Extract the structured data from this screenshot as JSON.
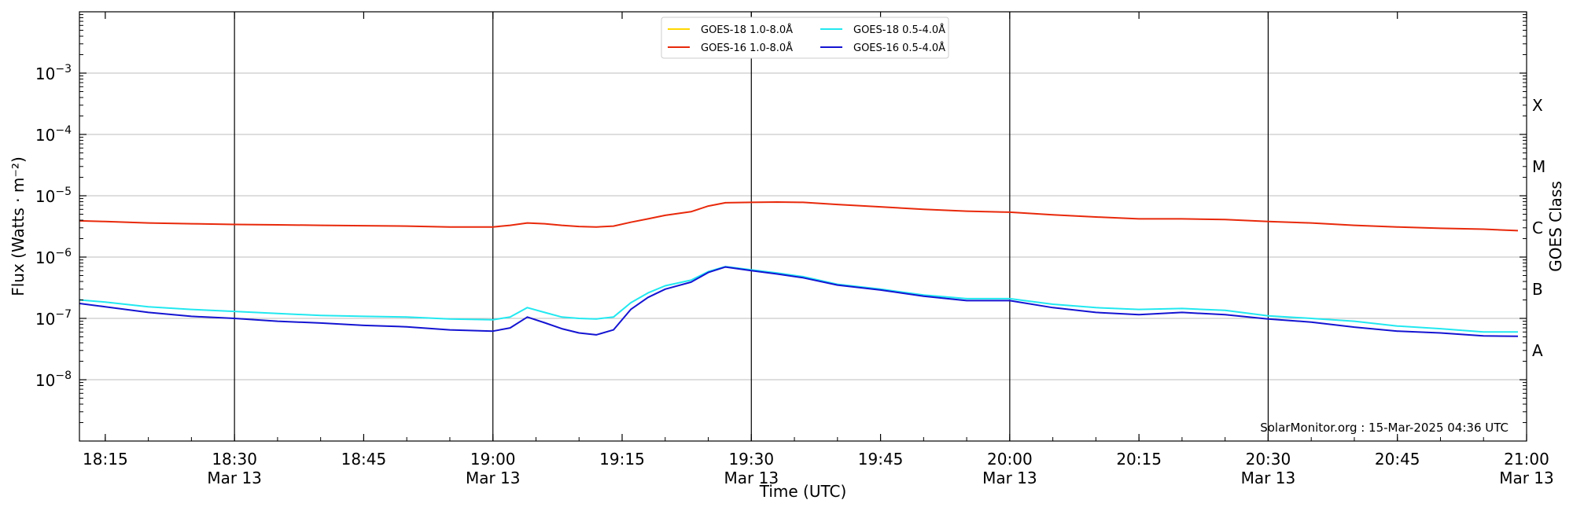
{
  "chart_data": {
    "type": "line",
    "xlabel": "Time (UTC)",
    "ylabel": "Flux (Watts · m⁻²)",
    "ylabel_right": "GOES Class",
    "y_scale": "log",
    "xlim": [
      "2025-03-13 18:12",
      "2025-03-13 21:00"
    ],
    "ylim": [
      1e-09,
      0.01
    ],
    "grid": "horizontal",
    "legend_placement": "top-center",
    "credit": "SolarMonitor.org : 15-Mar-2025 04:36 UTC",
    "x_ticks": [
      {
        "time": "18:15",
        "label": "18:15",
        "date": ""
      },
      {
        "time": "18:30",
        "label": "18:30",
        "date": "Mar 13"
      },
      {
        "time": "18:45",
        "label": "18:45",
        "date": ""
      },
      {
        "time": "19:00",
        "label": "19:00",
        "date": "Mar 13"
      },
      {
        "time": "19:15",
        "label": "19:15",
        "date": ""
      },
      {
        "time": "19:30",
        "label": "19:30",
        "date": "Mar 13"
      },
      {
        "time": "19:45",
        "label": "19:45",
        "date": ""
      },
      {
        "time": "20:00",
        "label": "20:00",
        "date": "Mar 13"
      },
      {
        "time": "20:15",
        "label": "20:15",
        "date": ""
      },
      {
        "time": "20:30",
        "label": "20:30",
        "date": "Mar 13"
      },
      {
        "time": "20:45",
        "label": "20:45",
        "date": ""
      },
      {
        "time": "21:00",
        "label": "21:00",
        "date": "Mar 13"
      }
    ],
    "y_ticks": [
      {
        "value": 1e-08,
        "base": "10",
        "exp": "−8"
      },
      {
        "value": 1e-07,
        "base": "10",
        "exp": "−7"
      },
      {
        "value": 1e-06,
        "base": "10",
        "exp": "−6"
      },
      {
        "value": 1e-05,
        "base": "10",
        "exp": "−5"
      },
      {
        "value": 0.0001,
        "base": "10",
        "exp": "−4"
      },
      {
        "value": 0.001,
        "base": "10",
        "exp": "−3"
      }
    ],
    "classes": [
      {
        "label": "A",
        "value": 3e-08
      },
      {
        "label": "B",
        "value": 3e-07
      },
      {
        "label": "C",
        "value": 3e-06
      },
      {
        "label": "M",
        "value": 3e-05
      },
      {
        "label": "X",
        "value": 0.0003
      }
    ],
    "vertical_lines": [
      "18:30",
      "19:00",
      "19:30",
      "20:00",
      "20:30"
    ],
    "series": [
      {
        "name": "GOES-18 1.0-8.0Å",
        "color": "#ffd700",
        "data": []
      },
      {
        "name": "GOES-16 1.0-8.0Å",
        "color": "#e8290b",
        "data": [
          [
            "18:12",
            3.9e-06
          ],
          [
            "18:15",
            3.8e-06
          ],
          [
            "18:20",
            3.6e-06
          ],
          [
            "18:25",
            3.5e-06
          ],
          [
            "18:30",
            3.4e-06
          ],
          [
            "18:35",
            3.35e-06
          ],
          [
            "18:40",
            3.3e-06
          ],
          [
            "18:45",
            3.25e-06
          ],
          [
            "18:50",
            3.2e-06
          ],
          [
            "18:55",
            3.1e-06
          ],
          [
            "19:00",
            3.1e-06
          ],
          [
            "19:02",
            3.3e-06
          ],
          [
            "19:04",
            3.6e-06
          ],
          [
            "19:06",
            3.5e-06
          ],
          [
            "19:08",
            3.3e-06
          ],
          [
            "19:10",
            3.15e-06
          ],
          [
            "19:12",
            3.1e-06
          ],
          [
            "19:14",
            3.2e-06
          ],
          [
            "19:16",
            3.7e-06
          ],
          [
            "19:18",
            4.2e-06
          ],
          [
            "19:20",
            4.8e-06
          ],
          [
            "19:23",
            5.5e-06
          ],
          [
            "19:25",
            6.8e-06
          ],
          [
            "19:27",
            7.7e-06
          ],
          [
            "19:30",
            7.8e-06
          ],
          [
            "19:33",
            7.9e-06
          ],
          [
            "19:36",
            7.8e-06
          ],
          [
            "19:40",
            7.2e-06
          ],
          [
            "19:45",
            6.6e-06
          ],
          [
            "19:50",
            6e-06
          ],
          [
            "19:55",
            5.6e-06
          ],
          [
            "20:00",
            5.4e-06
          ],
          [
            "20:05",
            4.9e-06
          ],
          [
            "20:10",
            4.5e-06
          ],
          [
            "20:15",
            4.2e-06
          ],
          [
            "20:20",
            4.2e-06
          ],
          [
            "20:25",
            4.1e-06
          ],
          [
            "20:30",
            3.8e-06
          ],
          [
            "20:35",
            3.6e-06
          ],
          [
            "20:40",
            3.3e-06
          ],
          [
            "20:45",
            3.1e-06
          ],
          [
            "20:50",
            2.95e-06
          ],
          [
            "20:55",
            2.85e-06
          ],
          [
            "20:59",
            2.7e-06
          ]
        ]
      },
      {
        "name": "GOES-18 0.5-4.0Å",
        "color": "#22e8f0",
        "data": [
          [
            "18:12",
            2e-07
          ],
          [
            "18:15",
            1.85e-07
          ],
          [
            "18:20",
            1.55e-07
          ],
          [
            "18:25",
            1.4e-07
          ],
          [
            "18:30",
            1.3e-07
          ],
          [
            "18:35",
            1.2e-07
          ],
          [
            "18:40",
            1.12e-07
          ],
          [
            "18:45",
            1.08e-07
          ],
          [
            "18:50",
            1.05e-07
          ],
          [
            "18:55",
            9.8e-08
          ],
          [
            "19:00",
            9.5e-08
          ],
          [
            "19:02",
            1.05e-07
          ],
          [
            "19:04",
            1.5e-07
          ],
          [
            "19:06",
            1.25e-07
          ],
          [
            "19:08",
            1.05e-07
          ],
          [
            "19:10",
            1e-07
          ],
          [
            "19:12",
            9.8e-08
          ],
          [
            "19:14",
            1.05e-07
          ],
          [
            "19:16",
            1.8e-07
          ],
          [
            "19:18",
            2.6e-07
          ],
          [
            "19:20",
            3.4e-07
          ],
          [
            "19:23",
            4.2e-07
          ],
          [
            "19:25",
            5.8e-07
          ],
          [
            "19:27",
            7e-07
          ],
          [
            "19:30",
            6.2e-07
          ],
          [
            "19:33",
            5.5e-07
          ],
          [
            "19:36",
            4.8e-07
          ],
          [
            "19:40",
            3.6e-07
          ],
          [
            "19:45",
            3e-07
          ],
          [
            "19:50",
            2.4e-07
          ],
          [
            "19:55",
            2.1e-07
          ],
          [
            "20:00",
            2.1e-07
          ],
          [
            "20:05",
            1.7e-07
          ],
          [
            "20:10",
            1.5e-07
          ],
          [
            "20:15",
            1.4e-07
          ],
          [
            "20:20",
            1.45e-07
          ],
          [
            "20:25",
            1.35e-07
          ],
          [
            "20:30",
            1.1e-07
          ],
          [
            "20:35",
            1e-07
          ],
          [
            "20:40",
            9e-08
          ],
          [
            "20:45",
            7.5e-08
          ],
          [
            "20:50",
            6.8e-08
          ],
          [
            "20:55",
            6e-08
          ],
          [
            "20:59",
            6e-08
          ]
        ]
      },
      {
        "name": "GOES-16 0.5-4.0Å",
        "color": "#1414d2",
        "data": [
          [
            "18:12",
            1.75e-07
          ],
          [
            "18:15",
            1.55e-07
          ],
          [
            "18:20",
            1.25e-07
          ],
          [
            "18:25",
            1.08e-07
          ],
          [
            "18:30",
            1e-07
          ],
          [
            "18:35",
            9e-08
          ],
          [
            "18:40",
            8.4e-08
          ],
          [
            "18:45",
            7.7e-08
          ],
          [
            "18:50",
            7.3e-08
          ],
          [
            "18:55",
            6.5e-08
          ],
          [
            "19:00",
            6.2e-08
          ],
          [
            "19:02",
            7e-08
          ],
          [
            "19:04",
            1.05e-07
          ],
          [
            "19:06",
            8.5e-08
          ],
          [
            "19:08",
            6.8e-08
          ],
          [
            "19:10",
            5.8e-08
          ],
          [
            "19:12",
            5.4e-08
          ],
          [
            "19:14",
            6.5e-08
          ],
          [
            "19:16",
            1.4e-07
          ],
          [
            "19:18",
            2.2e-07
          ],
          [
            "19:20",
            3e-07
          ],
          [
            "19:23",
            3.9e-07
          ],
          [
            "19:25",
            5.6e-07
          ],
          [
            "19:27",
            6.9e-07
          ],
          [
            "19:30",
            6e-07
          ],
          [
            "19:33",
            5.3e-07
          ],
          [
            "19:36",
            4.6e-07
          ],
          [
            "19:40",
            3.5e-07
          ],
          [
            "19:45",
            2.9e-07
          ],
          [
            "19:50",
            2.3e-07
          ],
          [
            "19:55",
            1.95e-07
          ],
          [
            "20:00",
            1.95e-07
          ],
          [
            "20:05",
            1.5e-07
          ],
          [
            "20:10",
            1.25e-07
          ],
          [
            "20:15",
            1.15e-07
          ],
          [
            "20:20",
            1.25e-07
          ],
          [
            "20:25",
            1.15e-07
          ],
          [
            "20:30",
            9.8e-08
          ],
          [
            "20:35",
            8.7e-08
          ],
          [
            "20:40",
            7.2e-08
          ],
          [
            "20:45",
            6.2e-08
          ],
          [
            "20:50",
            5.8e-08
          ],
          [
            "20:55",
            5.2e-08
          ],
          [
            "20:59",
            5.1e-08
          ]
        ]
      }
    ]
  }
}
